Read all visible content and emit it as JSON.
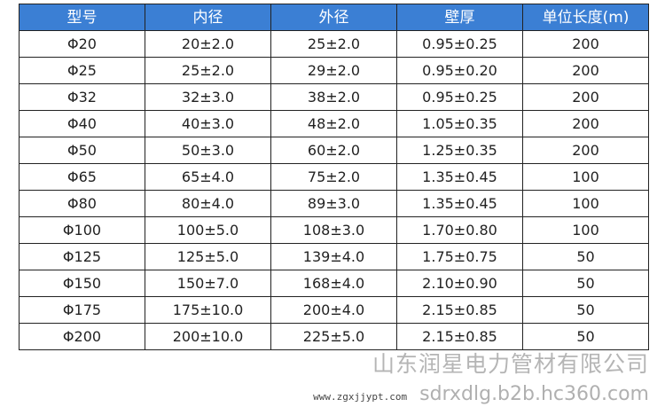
{
  "table": {
    "headers": [
      "型号",
      "内径",
      "外径",
      "壁厚",
      "单位长度(m)"
    ],
    "rows": [
      [
        "Φ20",
        "20±2.0",
        "25±2.0",
        "0.95±0.25",
        "200"
      ],
      [
        "Φ25",
        "25±2.0",
        "29±2.0",
        "0.95±0.20",
        "200"
      ],
      [
        "Φ32",
        "32±3.0",
        "38±2.0",
        "0.95±0.25",
        "200"
      ],
      [
        "Φ40",
        "40±3.0",
        "48±2.0",
        "1.05±0.35",
        "200"
      ],
      [
        "Φ50",
        "50±3.0",
        "60±2.0",
        "1.25±0.35",
        "200"
      ],
      [
        "Φ65",
        "65±4.0",
        "75±2.0",
        "1.35±0.45",
        "100"
      ],
      [
        "Φ80",
        "80±4.0",
        "89±3.0",
        "1.35±0.45",
        "100"
      ],
      [
        "Φ100",
        "100±5.0",
        "108±3.0",
        "1.70±0.80",
        "100"
      ],
      [
        "Φ125",
        "125±5.0",
        "139±4.0",
        "1.75±0.75",
        "50"
      ],
      [
        "Φ150",
        "150±7.0",
        "168±4.0",
        "2.10±0.90",
        "50"
      ],
      [
        "Φ175",
        "175±10.0",
        "200±4.0",
        "2.15±0.85",
        "50"
      ],
      [
        "Φ200",
        "200±10.0",
        "225±5.0",
        "2.15±0.85",
        "50"
      ]
    ]
  },
  "watermark": {
    "company": "山东润星电力管材有限公司",
    "site1": "www.zgxjjypt.com",
    "site2": "sdrxdlg.b2b.hc360.com"
  },
  "colors": {
    "header_bg": "#3b7fd4"
  }
}
